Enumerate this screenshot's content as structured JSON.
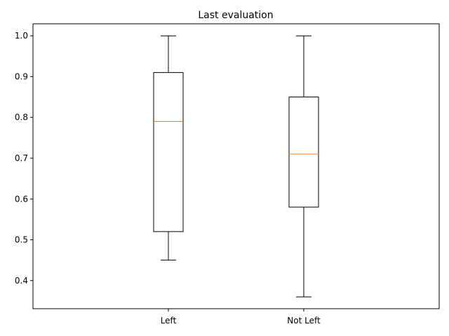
{
  "chart_data": {
    "type": "boxplot",
    "title": "Last evaluation",
    "xlabel": "",
    "ylabel": "",
    "categories": [
      "Left",
      "Not Left"
    ],
    "boxes": [
      {
        "category": "Left",
        "whisker_low": 0.45,
        "q1": 0.52,
        "median": 0.79,
        "q3": 0.91,
        "whisker_high": 1.0
      },
      {
        "category": "Not Left",
        "whisker_low": 0.36,
        "q1": 0.58,
        "median": 0.71,
        "q3": 0.85,
        "whisker_high": 1.0
      }
    ],
    "ylim": [
      0.331,
      1.0295
    ],
    "yticks": [
      0.4,
      0.5,
      0.6,
      0.7,
      0.8,
      0.9,
      1.0
    ],
    "ytick_labels": [
      "0.4",
      "0.5",
      "0.6",
      "0.7",
      "0.8",
      "0.9",
      "1.0"
    ],
    "grid": false,
    "colors": {
      "box": "#000000",
      "median": "#ff7f0e",
      "whisker": "#000000"
    }
  }
}
